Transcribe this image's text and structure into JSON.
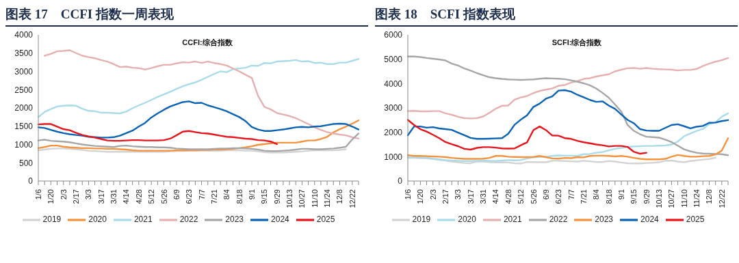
{
  "chart_data": [
    {
      "type": "line",
      "title": "图表 17　CCFI 指数一周表现",
      "subtitle": "CCFI:综合指数",
      "categories": [
        "1/6",
        null,
        "1/20",
        null,
        "2/3",
        null,
        "2/17",
        null,
        "3/3",
        null,
        "3/17",
        null,
        "3/31",
        null,
        "4/14",
        null,
        "4/28",
        null,
        "5/12",
        null,
        "5/26",
        null,
        "6/9",
        null,
        "6/23",
        null,
        "7/7",
        null,
        "7/21",
        null,
        "8/4",
        null,
        "8/18",
        null,
        "9/1",
        null,
        "9/15",
        null,
        "9/29",
        null,
        "10/13",
        null,
        "10/27",
        null,
        "11/10",
        null,
        "11/24",
        null,
        "12/8",
        null,
        "12/22",
        null
      ],
      "ylim": [
        0,
        4000
      ],
      "yticks": [
        0,
        500,
        1000,
        1500,
        2000,
        2500,
        3000,
        3500,
        4000
      ],
      "grid": false,
      "legend": "bottom",
      "marker": "none",
      "line_style": "solid",
      "series": [
        {
          "name": "2019",
          "color": "#d3d3d3",
          "values": [
            840,
            860,
            880,
            890,
            890,
            880,
            870,
            850,
            830,
            820,
            810,
            800,
            800,
            800,
            800,
            800,
            800,
            800,
            800,
            800,
            800,
            810,
            820,
            820,
            830,
            830,
            830,
            830,
            830,
            830,
            840,
            840,
            840,
            830,
            830,
            810,
            790,
            780,
            780,
            780,
            790,
            800,
            810,
            830,
            840,
            840,
            840,
            840,
            850,
            870,
            null,
            null
          ]
        },
        {
          "name": "2020",
          "color": "#f5923e",
          "values": [
            900,
            930,
            970,
            970,
            940,
            920,
            910,
            900,
            900,
            890,
            890,
            880,
            880,
            870,
            860,
            840,
            830,
            830,
            830,
            830,
            830,
            830,
            840,
            840,
            840,
            840,
            850,
            850,
            860,
            860,
            870,
            880,
            900,
            920,
            950,
            990,
            1010,
            1030,
            1050,
            1050,
            1050,
            1050,
            1080,
            1110,
            1110,
            1150,
            1210,
            1330,
            1420,
            1490,
            1570,
            1660
          ]
        },
        {
          "name": "2021",
          "color": "#a9dbe8",
          "values": [
            1750,
            1890,
            1970,
            2040,
            2060,
            2070,
            2060,
            1980,
            1920,
            1910,
            1870,
            1870,
            1860,
            1850,
            1900,
            1990,
            2070,
            2140,
            2220,
            2300,
            2370,
            2440,
            2520,
            2590,
            2650,
            2700,
            2770,
            2850,
            2930,
            3000,
            2980,
            3060,
            3080,
            3100,
            3160,
            3150,
            3230,
            3220,
            3270,
            3280,
            3290,
            3310,
            3270,
            3280,
            3230,
            3240,
            3200,
            3200,
            3240,
            3240,
            3290,
            3340
          ]
        },
        {
          "name": "2022",
          "color": "#e6b0b0",
          "values": [
            null,
            3430,
            3480,
            3550,
            3560,
            3580,
            3500,
            3430,
            3390,
            3360,
            3310,
            3270,
            3200,
            3120,
            3130,
            3100,
            3090,
            3050,
            3090,
            3140,
            3180,
            3180,
            3220,
            3250,
            3240,
            3270,
            3230,
            3270,
            3230,
            3200,
            3160,
            3080,
            3000,
            2910,
            2820,
            2330,
            2030,
            1960,
            1860,
            1820,
            1780,
            1720,
            1640,
            1560,
            1470,
            1400,
            1340,
            1300,
            1270,
            1250,
            1200,
            1160
          ]
        },
        {
          "name": "2023",
          "color": "#a6a6a6",
          "values": [
            1110,
            1130,
            1100,
            1090,
            1080,
            1060,
            1030,
            1000,
            980,
            960,
            950,
            940,
            930,
            960,
            970,
            950,
            940,
            930,
            930,
            920,
            920,
            910,
            890,
            880,
            870,
            870,
            870,
            870,
            880,
            890,
            890,
            900,
            900,
            890,
            880,
            860,
            830,
            820,
            820,
            830,
            840,
            860,
            880,
            880,
            870,
            870,
            880,
            890,
            910,
            940,
            1140,
            1300
          ]
        },
        {
          "name": "2024",
          "color": "#0a62b5",
          "values": [
            1470,
            1450,
            1400,
            1350,
            1310,
            1280,
            1260,
            1240,
            1210,
            1200,
            1190,
            1190,
            1200,
            1240,
            1310,
            1380,
            1490,
            1590,
            1740,
            1850,
            1950,
            2040,
            2100,
            2160,
            2180,
            2130,
            2140,
            2070,
            2020,
            1970,
            1910,
            1830,
            1750,
            1640,
            1480,
            1410,
            1370,
            1370,
            1390,
            1410,
            1440,
            1470,
            1480,
            1470,
            1490,
            1500,
            1530,
            1560,
            1570,
            1560,
            1490,
            1410
          ]
        },
        {
          "name": "2025",
          "color": "#e8141c",
          "values": [
            1550,
            1560,
            1560,
            1490,
            1420,
            1390,
            1320,
            1260,
            1220,
            1190,
            1150,
            1110,
            1100,
            1100,
            1110,
            1120,
            1120,
            1110,
            1110,
            1110,
            1120,
            1160,
            1250,
            1350,
            1370,
            1340,
            1310,
            1300,
            1270,
            1240,
            1210,
            1200,
            1180,
            1160,
            1150,
            1120,
            1110,
            1080,
            1010,
            null,
            null,
            null,
            null,
            null,
            null,
            null,
            null,
            null,
            null,
            null,
            null,
            null
          ]
        }
      ]
    },
    {
      "type": "line",
      "title": "图表 18　SCFI 指数表现",
      "subtitle": "SCFI:综合指数",
      "categories": [
        "1/6",
        null,
        "1/20",
        null,
        "2/3",
        null,
        "2/17",
        null,
        "3/3",
        null,
        "3/17",
        null,
        "3/31",
        null,
        "4/14",
        null,
        "4/28",
        null,
        "5/12",
        null,
        "5/26",
        null,
        "6/9",
        null,
        "6/23",
        null,
        "7/7",
        null,
        "7/21",
        null,
        "8/4",
        null,
        "8/18",
        null,
        "9/1",
        null,
        "9/15",
        null,
        "9/29",
        null,
        "10/13",
        null,
        "10/27",
        null,
        "11/10",
        null,
        "11/24",
        null,
        "12/8",
        null,
        "12/22",
        null
      ],
      "ylim": [
        0,
        6000
      ],
      "yticks": [
        0,
        1000,
        2000,
        3000,
        4000,
        5000,
        6000
      ],
      "grid": false,
      "legend": "bottom",
      "marker": "none",
      "line_style": "solid",
      "series": [
        {
          "name": "2019",
          "color": "#d3d3d3",
          "values": [
            950,
            950,
            940,
            930,
            900,
            870,
            840,
            800,
            770,
            740,
            730,
            800,
            800,
            780,
            760,
            770,
            760,
            730,
            720,
            780,
            780,
            770,
            770,
            830,
            830,
            820,
            810,
            800,
            830,
            810,
            780,
            780,
            820,
            800,
            760,
            730,
            720,
            720,
            740,
            750,
            770,
            830,
            840,
            800,
            770,
            820,
            850,
            880,
            900,
            960,
            null,
            null
          ]
        },
        {
          "name": "2020",
          "color": "#a9dbe8",
          "values": [
            970,
            970,
            980,
            960,
            920,
            890,
            860,
            840,
            830,
            820,
            820,
            830,
            840,
            830,
            820,
            840,
            860,
            850,
            860,
            930,
            970,
            990,
            1000,
            1030,
            1050,
            1040,
            1040,
            1030,
            1100,
            1110,
            1160,
            1190,
            1260,
            1320,
            1360,
            1400,
            1420,
            1430,
            1440,
            1440,
            1450,
            1460,
            1500,
            1620,
            1840,
            1950,
            2060,
            2140,
            2330,
            2410,
            2640,
            2780
          ]
        },
        {
          "name": "2021",
          "color": "#e6b0b0",
          "values": [
            2870,
            2880,
            2860,
            2860,
            2870,
            2870,
            2780,
            2720,
            2640,
            2580,
            2570,
            2580,
            2650,
            2800,
            2970,
            3090,
            3100,
            3340,
            3430,
            3490,
            3610,
            3700,
            3750,
            3800,
            3910,
            3940,
            4040,
            4100,
            4190,
            4220,
            4290,
            4340,
            4380,
            4500,
            4570,
            4630,
            4640,
            4610,
            4640,
            4610,
            4590,
            4580,
            4570,
            4540,
            4560,
            4560,
            4600,
            4720,
            4820,
            4900,
            4960,
            5050
          ]
        },
        {
          "name": "2022",
          "color": "#a6a6a6",
          "values": [
            5110,
            5110,
            5090,
            5050,
            5020,
            4990,
            4950,
            4820,
            4740,
            4620,
            4530,
            4430,
            4340,
            4260,
            4220,
            4190,
            4170,
            4160,
            4150,
            4160,
            4170,
            4200,
            4220,
            4210,
            4200,
            4180,
            4130,
            4080,
            4010,
            3930,
            3800,
            3620,
            3420,
            3140,
            2850,
            2300,
            2060,
            1920,
            1820,
            1800,
            1780,
            1700,
            1600,
            1450,
            1300,
            1220,
            1160,
            1130,
            1120,
            1110,
            1100,
            1060
          ]
        },
        {
          "name": "2023",
          "color": "#f5923e",
          "values": [
            1060,
            1030,
            1030,
            1020,
            1010,
            1000,
            980,
            950,
            930,
            910,
            910,
            910,
            920,
            950,
            1030,
            1030,
            1000,
            990,
            980,
            980,
            990,
            1030,
            980,
            930,
            920,
            950,
            940,
            980,
            970,
            1030,
            1040,
            1040,
            1030,
            1010,
            1030,
            1000,
            950,
            910,
            890,
            890,
            890,
            910,
            1000,
            1070,
            1030,
            1000,
            1000,
            1020,
            1030,
            1090,
            1250,
            1760
          ]
        },
        {
          "name": "2024",
          "color": "#0a62b5",
          "values": [
            1880,
            2240,
            2240,
            2190,
            2210,
            2160,
            2130,
            2100,
            1990,
            1880,
            1770,
            1730,
            1730,
            1740,
            1750,
            1760,
            1940,
            2310,
            2520,
            2700,
            3040,
            3180,
            3380,
            3470,
            3710,
            3730,
            3670,
            3540,
            3440,
            3330,
            3250,
            3270,
            3100,
            2960,
            2730,
            2510,
            2370,
            2130,
            2070,
            2060,
            2060,
            2180,
            2300,
            2330,
            2250,
            2160,
            2230,
            2260,
            2390,
            2400,
            2460,
            2500
          ]
        },
        {
          "name": "2025",
          "color": "#e8141c",
          "values": [
            2510,
            2300,
            2130,
            2030,
            1900,
            1760,
            1600,
            1510,
            1430,
            1320,
            1290,
            1360,
            1390,
            1390,
            1370,
            1340,
            1330,
            1340,
            1470,
            1590,
            2090,
            2240,
            2090,
            1870,
            1860,
            1760,
            1730,
            1650,
            1590,
            1550,
            1500,
            1470,
            1420,
            1440,
            1440,
            1400,
            1200,
            1120,
            1160,
            null,
            null,
            null,
            null,
            null,
            null,
            null,
            null,
            null,
            null,
            null,
            null,
            null
          ]
        }
      ]
    }
  ]
}
